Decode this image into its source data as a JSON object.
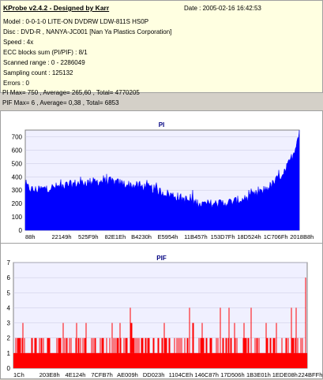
{
  "header": {
    "title": "KProbe v2.4.2 - Designed by Karr",
    "date": "Date : 2005-02-16 16:42:53"
  },
  "info_lines": [
    "Model : 0-0-1-0 LITE-ON DVDRW LDW-811S   HS0P",
    "Disc : DVD-R , NANYA-JC001  [Nan Ya Plastics Corporation]",
    "Speed : 4x",
    "ECC blocks sum (PI/PIF) : 8/1",
    "Scanned range : 0 - 2286049",
    "Sampling count : 125132",
    "Errors : 0",
    "PI Max= 750 , Average= 265,60 , Total= 4770205",
    "PIF Max= 6 , Average= 0,38 , Total= 6853"
  ],
  "chart_data": [
    {
      "type": "area",
      "title": "PI",
      "color": "#0000ff",
      "background": "#f0f0ff",
      "ylim": [
        0,
        750
      ],
      "y_ticks": [
        0,
        100,
        200,
        300,
        400,
        500,
        600,
        700
      ],
      "x_tick_labels": [
        "88h",
        "22149h",
        "525F9h",
        "82E1Eh",
        "B4230h",
        "E5954h",
        "11B457h",
        "153D7Fh",
        "18D524h",
        "1C706Fh",
        "2018B8h"
      ],
      "profile_x": [
        0,
        0.03,
        0.1,
        0.2,
        0.3,
        0.38,
        0.45,
        0.5,
        0.55,
        0.6,
        0.65,
        0.7,
        0.75,
        0.8,
        0.85,
        0.9,
        0.95,
        0.98,
        1.0
      ],
      "profile_y": [
        330,
        300,
        320,
        355,
        370,
        340,
        320,
        285,
        255,
        220,
        195,
        200,
        210,
        235,
        275,
        340,
        450,
        580,
        750
      ]
    },
    {
      "type": "bar",
      "title": "PIF",
      "color": "#ff0000",
      "background": "#f0f0ff",
      "ylim": [
        0,
        7
      ],
      "y_ticks": [
        0,
        1,
        2,
        3,
        4,
        5,
        6,
        7
      ],
      "x_tick_labels": [
        "1Ch",
        "203E8h",
        "4E124h",
        "7CFB7h",
        "AE009h",
        "DD023h",
        "1104CEh",
        "146C87h",
        "17D506h",
        "1B3E01h",
        "1EDE08h",
        "224BFFh"
      ],
      "base_level": 1,
      "max": 6
    }
  ]
}
